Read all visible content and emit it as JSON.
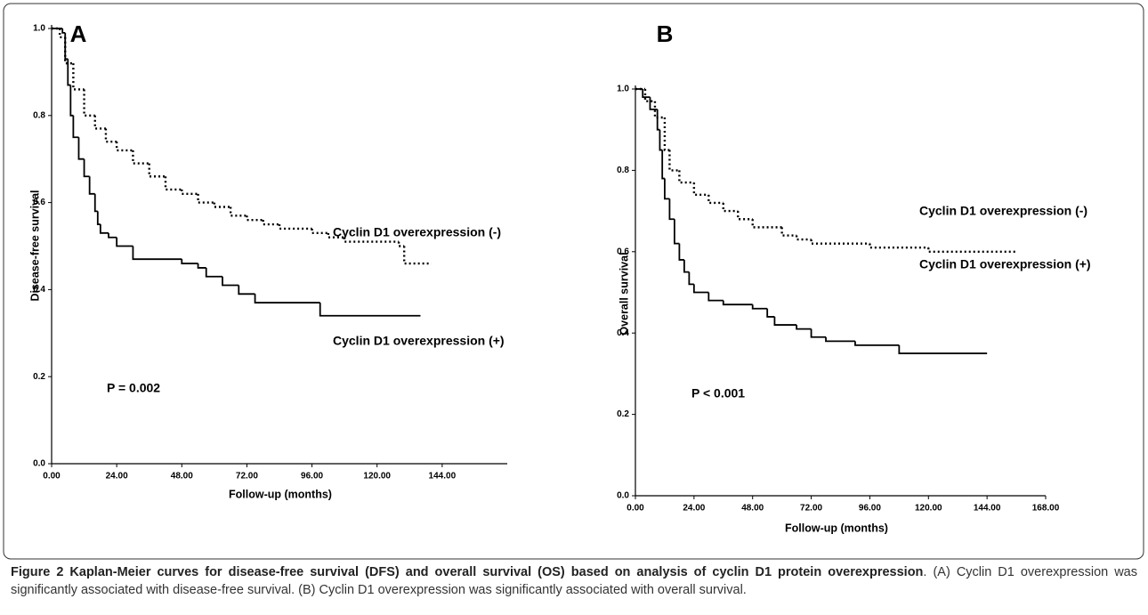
{
  "chart_data": [
    {
      "type": "line",
      "drawstyle": "steps-post",
      "panel_label": "A",
      "xlabel": "Follow-up (months)",
      "ylabel": "Disease-free survival",
      "xlim": [
        0,
        168
      ],
      "ylim": [
        0,
        1
      ],
      "xticks": [
        {
          "value": 0,
          "label": "0.00"
        },
        {
          "value": 24,
          "label": "24.00"
        },
        {
          "value": 48,
          "label": "48.00"
        },
        {
          "value": 72,
          "label": "72.00"
        },
        {
          "value": 96,
          "label": "96.00"
        },
        {
          "value": 120,
          "label": "120.00"
        },
        {
          "value": 144,
          "label": "144.00"
        }
      ],
      "yticks": [
        {
          "value": 0,
          "label": "0.0"
        },
        0.2,
        0.4,
        0.6,
        0.8,
        {
          "value": 1,
          "label": "1.0"
        }
      ],
      "annotations": [
        "Cyclin D1 overexpression (-)",
        "Cyclin D1 overexpression (+)",
        "P = 0.002"
      ],
      "series": [
        {
          "name": "Cyclin D1 overexpression (-)",
          "color": "#000000",
          "linestyle": "dotted",
          "x": [
            0,
            3,
            5,
            8,
            12,
            16,
            20,
            24,
            30,
            36,
            42,
            48,
            54,
            60,
            66,
            72,
            78,
            84,
            96,
            102,
            108,
            128,
            130,
            140
          ],
          "values": [
            1,
            0.98,
            0.92,
            0.86,
            0.8,
            0.77,
            0.74,
            0.72,
            0.69,
            0.66,
            0.63,
            0.62,
            0.6,
            0.59,
            0.57,
            0.56,
            0.55,
            0.54,
            0.53,
            0.52,
            0.51,
            0.5,
            0.46,
            0.46
          ]
        },
        {
          "name": "Cyclin D1 overexpression (+)",
          "color": "#000000",
          "linestyle": "solid",
          "x": [
            0,
            4,
            5,
            6,
            7,
            8,
            10,
            12,
            14,
            16,
            17,
            18,
            21,
            24,
            30,
            48,
            54,
            57,
            63,
            69,
            75,
            99,
            136
          ],
          "values": [
            1,
            0.99,
            0.93,
            0.87,
            0.8,
            0.75,
            0.7,
            0.66,
            0.62,
            0.58,
            0.55,
            0.53,
            0.52,
            0.5,
            0.47,
            0.46,
            0.45,
            0.43,
            0.41,
            0.39,
            0.37,
            0.34,
            0.34
          ]
        }
      ]
    },
    {
      "type": "line",
      "drawstyle": "steps-post",
      "panel_label": "B",
      "xlabel": "Follow-up (months)",
      "ylabel": "Overall survival",
      "xlim": [
        0,
        168
      ],
      "ylim": [
        0,
        1
      ],
      "xticks": [
        {
          "value": 0,
          "label": "0.00"
        },
        {
          "value": 24,
          "label": "24.00"
        },
        {
          "value": 48,
          "label": "48.00"
        },
        {
          "value": 72,
          "label": "72.00"
        },
        {
          "value": 96,
          "label": "96.00"
        },
        {
          "value": 120,
          "label": "120.00"
        },
        {
          "value": 144,
          "label": "144.00"
        },
        {
          "value": 168,
          "label": "168.00"
        }
      ],
      "yticks": [
        {
          "value": 0,
          "label": "0.0"
        },
        0.2,
        0.4,
        0.6,
        0.8,
        {
          "value": 1,
          "label": "1.0"
        }
      ],
      "annotations": [
        "Cyclin D1 overexpression (-)",
        "Cyclin D1 overexpression (+)",
        "P < 0.001"
      ],
      "series": [
        {
          "name": "Cyclin D1 overexpression (-)",
          "color": "#000000",
          "linestyle": "dotted",
          "x": [
            0,
            4,
            8,
            12,
            14,
            18,
            24,
            30,
            36,
            42,
            48,
            60,
            66,
            72,
            96,
            120,
            156
          ],
          "values": [
            1,
            0.97,
            0.93,
            0.85,
            0.8,
            0.77,
            0.74,
            0.72,
            0.7,
            0.68,
            0.66,
            0.64,
            0.63,
            0.62,
            0.61,
            0.6,
            0.6
          ]
        },
        {
          "name": "Cyclin D1 overexpression (+)",
          "color": "#000000",
          "linestyle": "solid",
          "x": [
            0,
            3,
            6,
            9,
            10,
            11,
            12,
            14,
            16,
            18,
            20,
            22,
            24,
            30,
            36,
            48,
            54,
            57,
            66,
            72,
            78,
            90,
            108,
            144
          ],
          "values": [
            1,
            0.98,
            0.95,
            0.9,
            0.85,
            0.78,
            0.73,
            0.68,
            0.62,
            0.58,
            0.55,
            0.52,
            0.5,
            0.48,
            0.47,
            0.46,
            0.44,
            0.42,
            0.41,
            0.39,
            0.38,
            0.37,
            0.35,
            0.35
          ]
        }
      ]
    }
  ],
  "caption": {
    "title": "Figure 2 Kaplan-Meier curves for disease-free survival (DFS) and overall survival (OS) based on analysis of cyclin D1 protein overexpression",
    "text": ". (A) Cyclin D1 overexpression was significantly associated with disease-free survival. (B) Cyclin D1 overexpression was significantly associated with overall survival."
  }
}
